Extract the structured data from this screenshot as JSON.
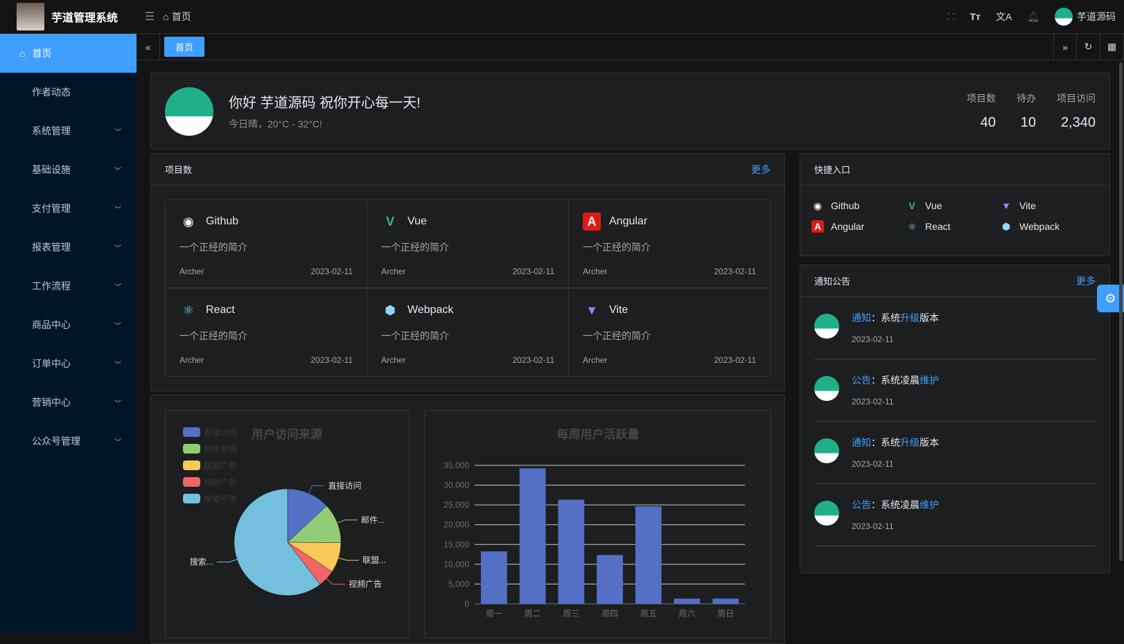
{
  "header": {
    "app_title": "芋道管理系统",
    "breadcrumb": "首页",
    "username": "芋道源码"
  },
  "sidebar": {
    "items": [
      {
        "label": "首页",
        "active": true
      },
      {
        "label": "作者动态"
      },
      {
        "label": "系统管理",
        "expandable": true
      },
      {
        "label": "基础设施",
        "expandable": true
      },
      {
        "label": "支付管理",
        "expandable": true
      },
      {
        "label": "报表管理",
        "expandable": true
      },
      {
        "label": "工作流程",
        "expandable": true
      },
      {
        "label": "商品中心",
        "expandable": true
      },
      {
        "label": "订单中心",
        "expandable": true
      },
      {
        "label": "营销中心",
        "expandable": true
      },
      {
        "label": "公众号管理",
        "expandable": true
      }
    ]
  },
  "tabs": [
    {
      "label": "首页",
      "active": true
    }
  ],
  "welcome": {
    "greeting": "你好 芋道源码 祝你开心每一天!",
    "weather": "今日晴，20°C - 32°C!",
    "stats": [
      {
        "label": "项目数",
        "value": "40"
      },
      {
        "label": "待办",
        "value": "10"
      },
      {
        "label": "项目访问",
        "value": "2,340"
      }
    ]
  },
  "projects": {
    "title": "项目数",
    "more": "更多",
    "items": [
      {
        "name": "Github",
        "icon": "github-icon",
        "desc": "一个正经的简介",
        "author": "Archer",
        "date": "2023-02-11"
      },
      {
        "name": "Vue",
        "icon": "vue-icon",
        "desc": "一个正经的简介",
        "author": "Archer",
        "date": "2023-02-11"
      },
      {
        "name": "Angular",
        "icon": "angular-icon",
        "desc": "一个正经的简介",
        "author": "Archer",
        "date": "2023-02-11"
      },
      {
        "name": "React",
        "icon": "react-icon",
        "desc": "一个正经的简介",
        "author": "Archer",
        "date": "2023-02-11"
      },
      {
        "name": "Webpack",
        "icon": "webpack-icon",
        "desc": "一个正经的简介",
        "author": "Archer",
        "date": "2023-02-11"
      },
      {
        "name": "Vite",
        "icon": "vite-icon",
        "desc": "一个正经的简介",
        "author": "Archer",
        "date": "2023-02-11"
      }
    ]
  },
  "quick": {
    "title": "快捷入口",
    "items": [
      {
        "name": "Github"
      },
      {
        "name": "Vue"
      },
      {
        "name": "Vite"
      },
      {
        "name": "Angular"
      },
      {
        "name": "React"
      },
      {
        "name": "Webpack"
      }
    ]
  },
  "notices": {
    "title": "通知公告",
    "more": "更多",
    "items": [
      {
        "type": "通知",
        "sep": "：",
        "a": "系统",
        "b": "升级",
        "c": "版本",
        "date": "2023-02-11"
      },
      {
        "type": "公告",
        "sep": "：",
        "a": "系统凌晨",
        "b": "维护",
        "c": "",
        "date": "2023-02-11"
      },
      {
        "type": "通知",
        "sep": "：",
        "a": "系统",
        "b": "升级",
        "c": "版本",
        "date": "2023-02-11"
      },
      {
        "type": "公告",
        "sep": "：",
        "a": "系统凌晨",
        "b": "维护",
        "c": "",
        "date": "2023-02-11"
      }
    ]
  },
  "chart_data": [
    {
      "type": "pie",
      "title": "用户访问来源",
      "legend_position": "top-left",
      "categories": [
        "直接访问",
        "邮件营销",
        "联盟广告",
        "视频广告",
        "搜索引擎"
      ],
      "values": [
        335,
        310,
        234,
        135,
        1548
      ],
      "slice_labels": [
        "直接访问",
        "邮件...",
        "联盟...",
        "视频广告",
        "搜索..."
      ],
      "colors": [
        "#5470c6",
        "#91cc75",
        "#fac858",
        "#ee6666",
        "#73c0de"
      ]
    },
    {
      "type": "bar",
      "title": "每周用户活跃量",
      "categories": [
        "周一",
        "周二",
        "周三",
        "周四",
        "周五",
        "周六",
        "周日"
      ],
      "values": [
        13253,
        34235,
        26321,
        12340,
        24643,
        1322,
        1324
      ],
      "ylim": [
        0,
        35000
      ],
      "yticks": [
        "0",
        "5,000",
        "10,000",
        "15,000",
        "20,000",
        "25,000",
        "30,000",
        "35,000"
      ],
      "color": "#5470c6",
      "grid": true
    }
  ]
}
